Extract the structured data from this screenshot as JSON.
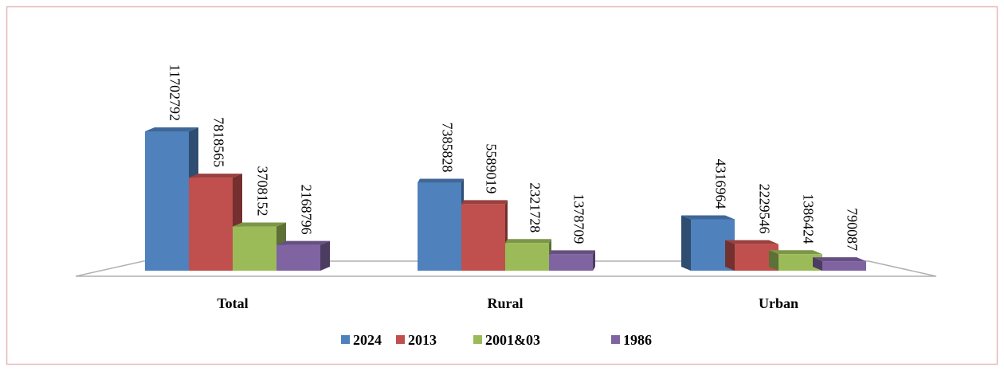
{
  "chart_data": {
    "type": "bar3d",
    "categories": [
      "Total",
      "Rural",
      "Urban"
    ],
    "series": [
      {
        "name": "2024",
        "color": "#4f81bd",
        "values": [
          11702792,
          7385828,
          4316964
        ]
      },
      {
        "name": "2013",
        "color": "#c0504d",
        "values": [
          7818565,
          5589019,
          2229546
        ]
      },
      {
        "name": "2001&03",
        "color": "#9bbb59",
        "values": [
          3708152,
          2321728,
          1386424
        ]
      },
      {
        "name": "1986",
        "color": "#8064a2",
        "values": [
          2168796,
          1378709,
          790087
        ]
      }
    ],
    "legend": "bottom"
  }
}
